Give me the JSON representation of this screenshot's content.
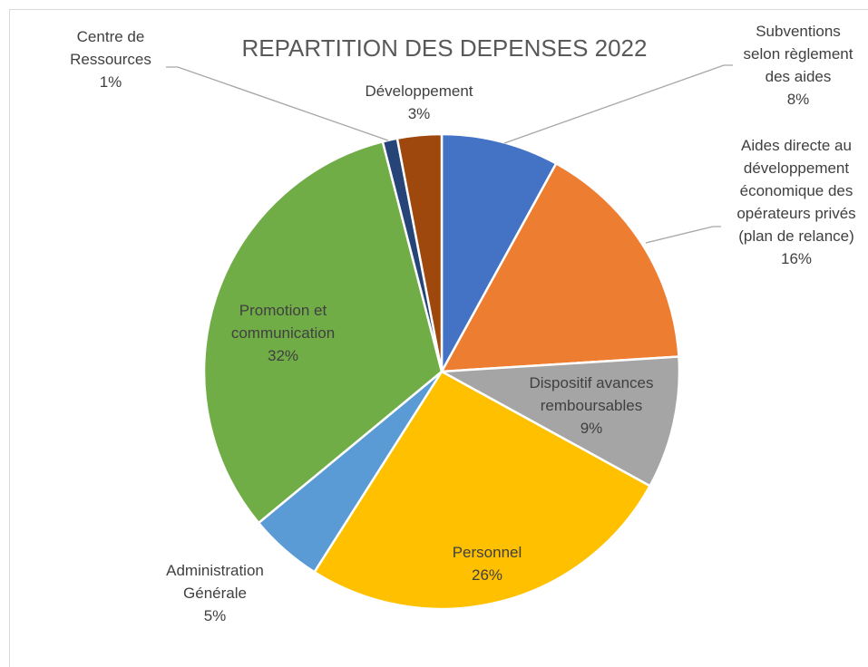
{
  "chart_data": {
    "type": "pie",
    "title": "REPARTITION DES DEPENSES 2022",
    "categories": [
      "Subventions selon règlement des aides",
      "Aides directe au développement économique des opérateurs privés (plan de relance)",
      "Dispositif avances remboursables",
      "Personnel",
      "Administration Générale",
      "Promotion et communication",
      "Centre de Ressources",
      "Développement"
    ],
    "values": [
      8,
      16,
      9,
      26,
      5,
      32,
      1,
      3
    ],
    "value_labels": [
      "8%",
      "16%",
      "9%",
      "26%",
      "5%",
      "32%",
      "1%",
      "3%"
    ],
    "colors": [
      "#4472c4",
      "#ed7d31",
      "#a5a5a5",
      "#ffc000",
      "#5b9bd5",
      "#70ad47",
      "#264478",
      "#9e480e"
    ]
  }
}
